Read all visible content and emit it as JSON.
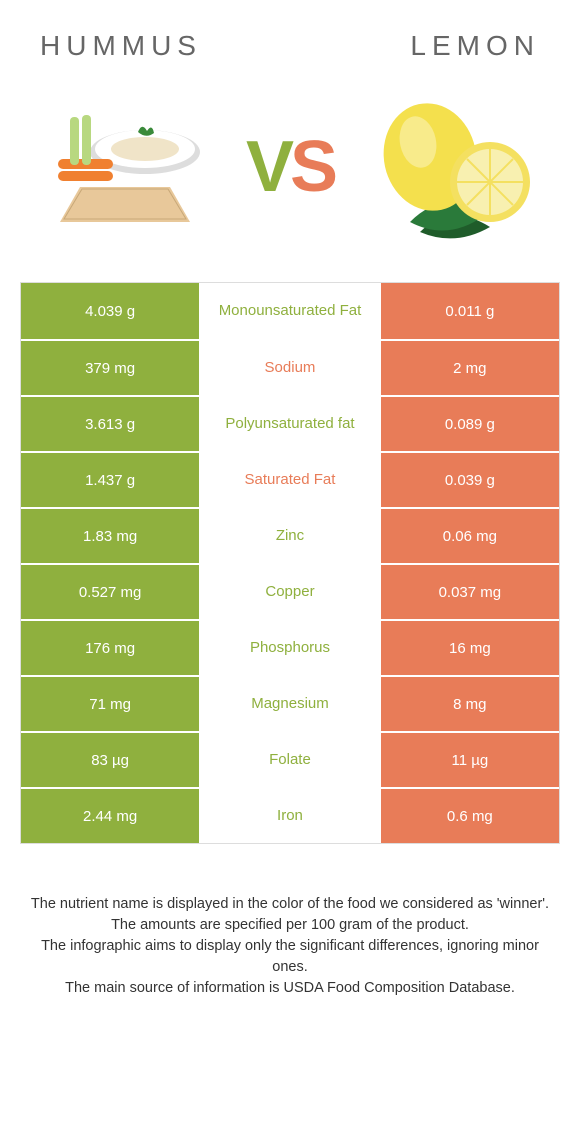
{
  "food_left": {
    "name": "HUMMUS",
    "color": "#8fb03e"
  },
  "food_right": {
    "name": "LEMON",
    "color": "#e87c58"
  },
  "vs_label": "VS",
  "table": {
    "left_bg": "#8fb03e",
    "right_bg": "#e87c58",
    "rows": [
      {
        "left": "4.039 g",
        "mid": "Monounsaturated Fat",
        "right": "0.011 g",
        "mid_color": "#8fb03e"
      },
      {
        "left": "379 mg",
        "mid": "Sodium",
        "right": "2 mg",
        "mid_color": "#e87c58"
      },
      {
        "left": "3.613 g",
        "mid": "Polyunsaturated fat",
        "right": "0.089 g",
        "mid_color": "#8fb03e"
      },
      {
        "left": "1.437 g",
        "mid": "Saturated Fat",
        "right": "0.039 g",
        "mid_color": "#e87c58"
      },
      {
        "left": "1.83 mg",
        "mid": "Zinc",
        "right": "0.06 mg",
        "mid_color": "#8fb03e"
      },
      {
        "left": "0.527 mg",
        "mid": "Copper",
        "right": "0.037 mg",
        "mid_color": "#8fb03e"
      },
      {
        "left": "176 mg",
        "mid": "Phosphorus",
        "right": "16 mg",
        "mid_color": "#8fb03e"
      },
      {
        "left": "71 mg",
        "mid": "Magnesium",
        "right": "8 mg",
        "mid_color": "#8fb03e"
      },
      {
        "left": "83 µg",
        "mid": "Folate",
        "right": "11 µg",
        "mid_color": "#8fb03e"
      },
      {
        "left": "2.44 mg",
        "mid": "Iron",
        "right": "0.6 mg",
        "mid_color": "#8fb03e"
      }
    ]
  },
  "footer": {
    "line1": "The nutrient name is displayed in the color of the food we considered as 'winner'.",
    "line2": "The amounts are specified per 100 gram of the product.",
    "line3": "The infographic aims to display only the significant differences, ignoring minor ones.",
    "line4": "The main source of information is USDA Food Composition Database."
  },
  "hero_illustration": {
    "hummus": {
      "plate": "#ffffff",
      "plate_rim": "#dddddd",
      "dip": "#f0e4c8",
      "pita": "#e8c89a",
      "carrot": "#f08030",
      "celery": "#b8d880",
      "parsley": "#3a8a3a"
    },
    "lemon": {
      "skin": "#f4e04d",
      "skin_shadow": "#d8c030",
      "flesh": "#f8f0b0",
      "rind": "#f4e060",
      "leaf": "#2a7a3a",
      "leaf_dark": "#1f5c2a"
    }
  }
}
